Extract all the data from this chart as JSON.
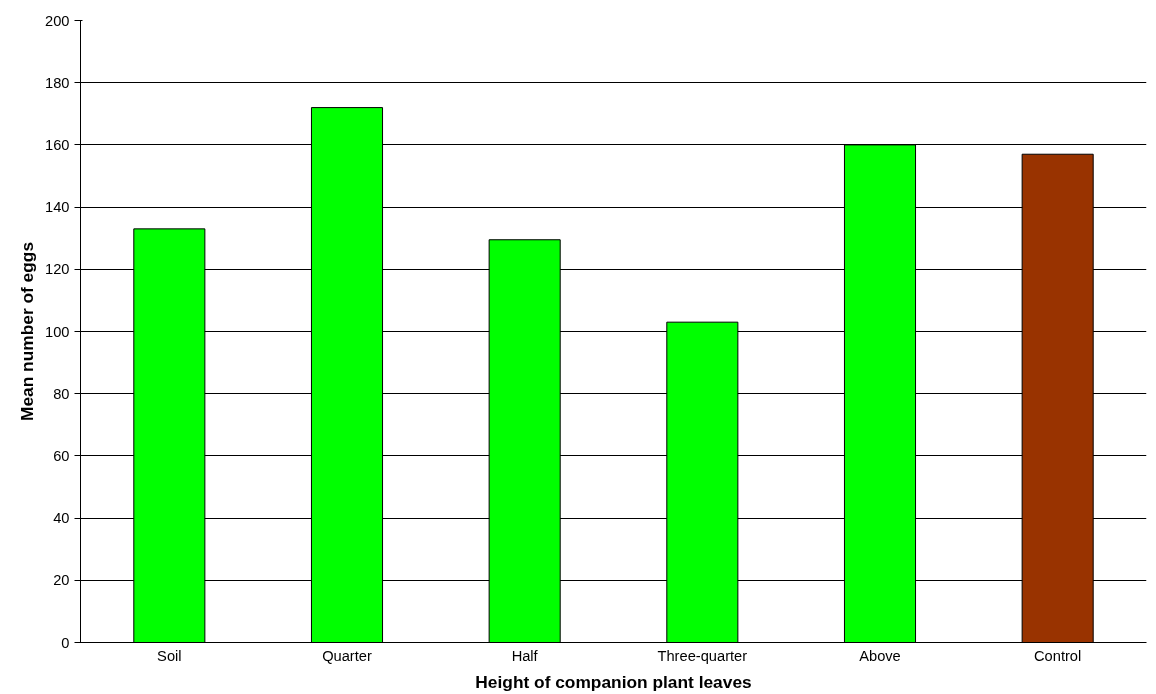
{
  "chart_data": {
    "type": "bar",
    "xlabel": "Height of companion plant leaves",
    "ylabel": "Mean number of eggs",
    "categories": [
      "Soil",
      "Quarter",
      "Half",
      "Three-quarter",
      "Above",
      "Control"
    ],
    "values": [
      133,
      172,
      129.5,
      103,
      160,
      157
    ],
    "colors": [
      "#00ff00",
      "#00ff00",
      "#00ff00",
      "#00ff00",
      "#00ff00",
      "#993300"
    ],
    "ylim": [
      0,
      200
    ],
    "yticks": [
      0,
      20,
      40,
      60,
      80,
      100,
      120,
      140,
      160,
      180,
      200
    ],
    "grid": "y"
  }
}
